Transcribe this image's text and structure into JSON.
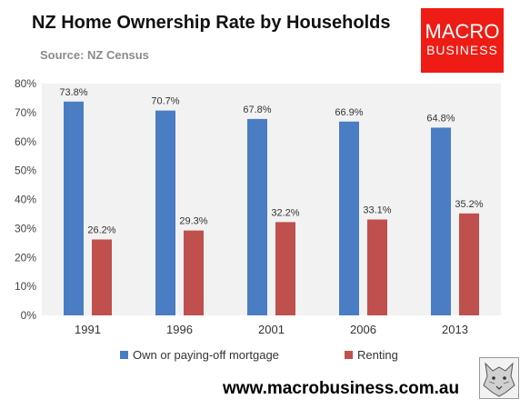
{
  "header": {
    "title": "NZ Home Ownership Rate by Households",
    "source": "Source: NZ Census"
  },
  "logo": {
    "line1": "MACRO",
    "line2": "BUSINESS"
  },
  "footer": {
    "url": "www.macrobusiness.com.au"
  },
  "colors": {
    "own": "#4a7dc3",
    "rent": "#c0504d",
    "plot_bg": "#f2f2f2",
    "logo_bg": "#ee1c14"
  },
  "chart_data": {
    "type": "bar",
    "categories": [
      "1991",
      "1996",
      "2001",
      "2006",
      "2013"
    ],
    "series": [
      {
        "name": "Own or paying-off mortgage",
        "values": [
          73.8,
          70.7,
          67.8,
          66.9,
          64.8
        ]
      },
      {
        "name": "Renting",
        "values": [
          26.2,
          29.3,
          32.2,
          33.1,
          35.2
        ]
      }
    ],
    "data_labels": [
      [
        "73.8%",
        "70.7%",
        "67.8%",
        "66.9%",
        "64.8%"
      ],
      [
        "26.2%",
        "29.3%",
        "32.2%",
        "33.1%",
        "35.2%"
      ]
    ],
    "yticks": [
      "0%",
      "10%",
      "20%",
      "30%",
      "40%",
      "50%",
      "60%",
      "70%",
      "80%"
    ],
    "ylim": [
      0,
      80
    ],
    "grid": false,
    "legend": "bottom"
  }
}
